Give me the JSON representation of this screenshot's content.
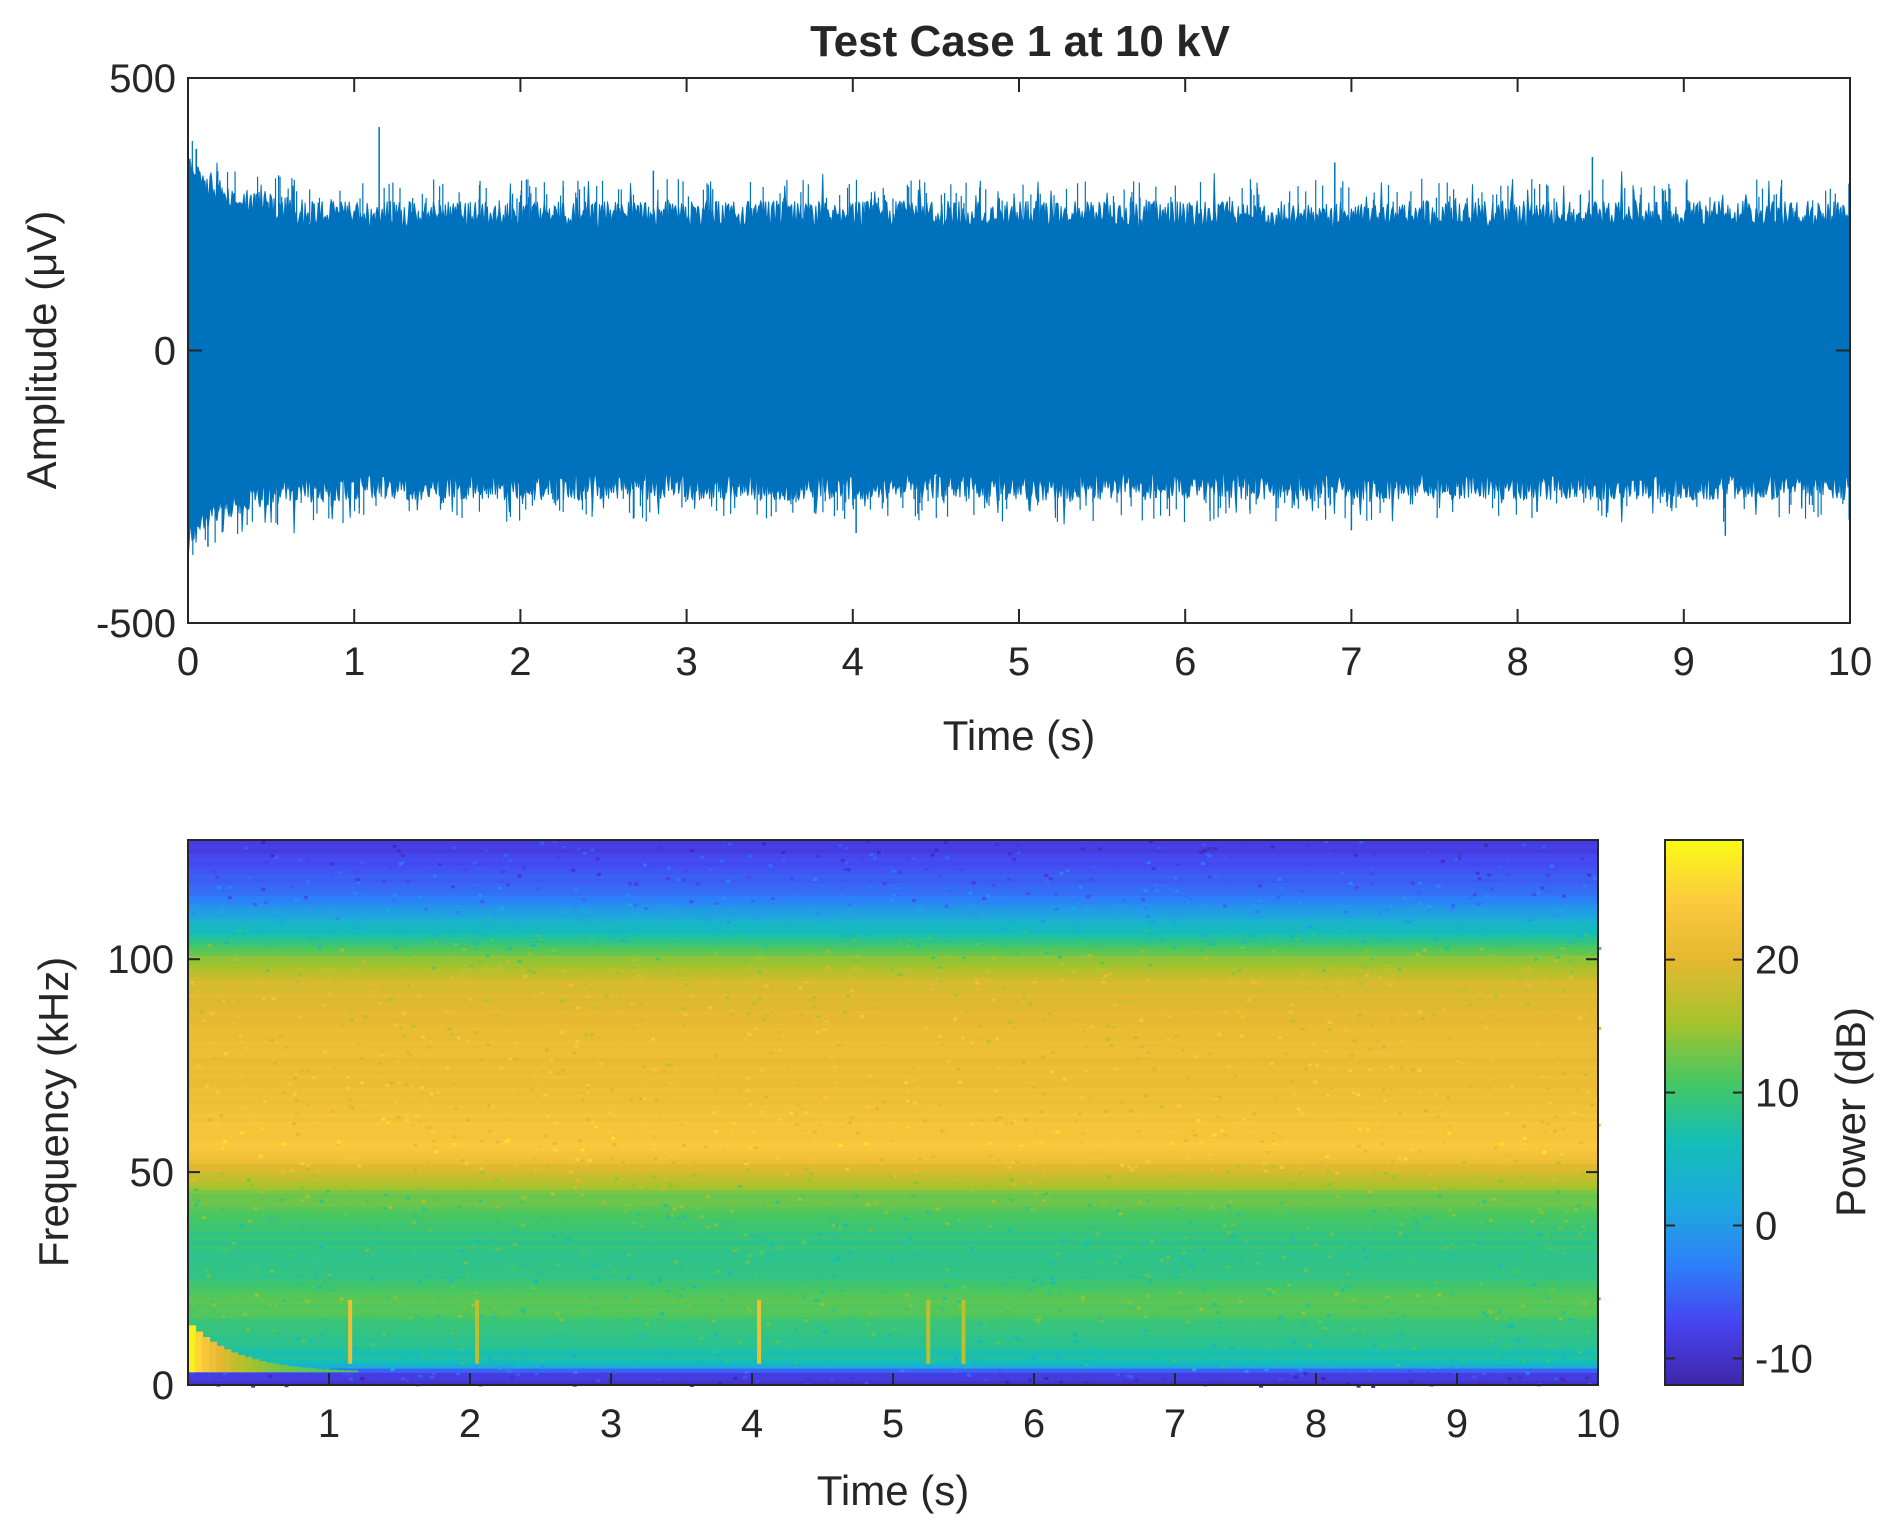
{
  "chart_data": [
    {
      "type": "line",
      "title": "Test Case 1 at 10 kV",
      "xlabel": "Time (s)",
      "ylabel": "Amplitude (μV)",
      "xlim": [
        0,
        10
      ],
      "ylim": [
        -500,
        500
      ],
      "xticks": [
        "0",
        "1",
        "2",
        "3",
        "4",
        "5",
        "6",
        "7",
        "8",
        "9",
        "10"
      ],
      "yticks": [
        "500",
        "0",
        "-500"
      ],
      "series_color": "#0072BD",
      "description_values": {
        "typical_envelope_uV": [
          -250,
          250
        ],
        "early_envelope_uV": [
          -340,
          340
        ],
        "peak_spike": {
          "x": 1.15,
          "y": 410
        },
        "spikes": [
          {
            "x": 0.05,
            "y": 370
          },
          {
            "x": 0.12,
            "y": -360
          },
          {
            "x": 1.15,
            "y": 410
          },
          {
            "x": 2.8,
            "y": 330
          },
          {
            "x": 4.02,
            "y": -335
          },
          {
            "x": 6.9,
            "y": 345
          },
          {
            "x": 8.45,
            "y": 355
          },
          {
            "x": 9.25,
            "y": -340
          },
          {
            "x": 7.0,
            "y": -330
          }
        ]
      }
    },
    {
      "type": "heatmap",
      "xlabel": "Time (s)",
      "ylabel": "Frequency (kHz)",
      "xlim": [
        0,
        10
      ],
      "ylim": [
        0,
        128
      ],
      "xticks": [
        "1",
        "2",
        "3",
        "4",
        "5",
        "6",
        "7",
        "8",
        "9",
        "10"
      ],
      "yticks": [
        "0",
        "50",
        "100"
      ],
      "colorbar": {
        "label": "Power (dB)",
        "range": [
          -12,
          29
        ],
        "ticks": [
          "-10",
          "0",
          "10",
          "20"
        ],
        "colormap": [
          "#3E26A8",
          "#4743F0",
          "#2C81F9",
          "#1DAADB",
          "#13BEB8",
          "#46C762",
          "#A6C32C",
          "#E4B830",
          "#FCCA3E",
          "#F9FB15"
        ]
      },
      "frequency_profile_dB": [
        {
          "f": 0,
          "p": -10
        },
        {
          "f": 3,
          "p": -8
        },
        {
          "f": 5,
          "p": 6
        },
        {
          "f": 10,
          "p": 8
        },
        {
          "f": 20,
          "p": 12
        },
        {
          "f": 25,
          "p": 9
        },
        {
          "f": 35,
          "p": 9
        },
        {
          "f": 45,
          "p": 13
        },
        {
          "f": 55,
          "p": 24
        },
        {
          "f": 65,
          "p": 22
        },
        {
          "f": 80,
          "p": 21
        },
        {
          "f": 95,
          "p": 19
        },
        {
          "f": 102,
          "p": 12
        },
        {
          "f": 108,
          "p": 4
        },
        {
          "f": 115,
          "p": -4
        },
        {
          "f": 128,
          "p": -9
        }
      ],
      "low_frequency_burst": {
        "t_range": [
          0,
          1.2
        ],
        "f_range": [
          0,
          14
        ],
        "peak_dB": 28
      },
      "transients_s": [
        1.15,
        2.05,
        4.05,
        5.25,
        5.5
      ]
    }
  ]
}
